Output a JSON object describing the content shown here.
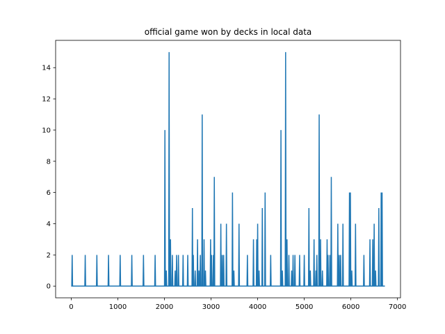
{
  "chart_data": {
    "type": "line",
    "title": "official game won by decks in local data",
    "xlabel": "",
    "ylabel": "",
    "xlim": [
      -335,
      7065
    ],
    "ylim": [
      -0.75,
      15.75
    ],
    "x_ticks": [
      0,
      1000,
      2000,
      3000,
      4000,
      5000,
      6000,
      7000
    ],
    "y_ticks": [
      0,
      2,
      4,
      6,
      8,
      10,
      12,
      14
    ],
    "x_tick_labels": [
      "0",
      "1000",
      "2000",
      "3000",
      "4000",
      "5000",
      "6000",
      "7000"
    ],
    "y_tick_labels": [
      "0",
      "2",
      "4",
      "6",
      "8",
      "10",
      "12",
      "14"
    ],
    "grid": false,
    "series_color": "#1f77b4",
    "x_range": [
      0,
      6730
    ],
    "baseline": 0,
    "spikes": [
      {
        "x": 20,
        "y": 2
      },
      {
        "x": 300,
        "y": 2
      },
      {
        "x": 550,
        "y": 2
      },
      {
        "x": 800,
        "y": 2
      },
      {
        "x": 1050,
        "y": 2
      },
      {
        "x": 1300,
        "y": 2
      },
      {
        "x": 1550,
        "y": 2
      },
      {
        "x": 1800,
        "y": 2
      },
      {
        "x": 2010,
        "y": 10
      },
      {
        "x": 2040,
        "y": 1
      },
      {
        "x": 2100,
        "y": 15
      },
      {
        "x": 2130,
        "y": 3
      },
      {
        "x": 2170,
        "y": 2
      },
      {
        "x": 2230,
        "y": 1
      },
      {
        "x": 2260,
        "y": 2
      },
      {
        "x": 2300,
        "y": 2
      },
      {
        "x": 2400,
        "y": 2
      },
      {
        "x": 2500,
        "y": 2
      },
      {
        "x": 2600,
        "y": 5
      },
      {
        "x": 2620,
        "y": 2
      },
      {
        "x": 2660,
        "y": 1
      },
      {
        "x": 2710,
        "y": 3
      },
      {
        "x": 2740,
        "y": 1
      },
      {
        "x": 2770,
        "y": 2
      },
      {
        "x": 2810,
        "y": 11
      },
      {
        "x": 2850,
        "y": 3
      },
      {
        "x": 2880,
        "y": 1
      },
      {
        "x": 2990,
        "y": 3
      },
      {
        "x": 3010,
        "y": 2
      },
      {
        "x": 3050,
        "y": 2
      },
      {
        "x": 3070,
        "y": 7
      },
      {
        "x": 3210,
        "y": 4
      },
      {
        "x": 3240,
        "y": 2
      },
      {
        "x": 3270,
        "y": 2
      },
      {
        "x": 3330,
        "y": 4
      },
      {
        "x": 3460,
        "y": 6
      },
      {
        "x": 3490,
        "y": 1
      },
      {
        "x": 3600,
        "y": 4
      },
      {
        "x": 3780,
        "y": 2
      },
      {
        "x": 3910,
        "y": 3
      },
      {
        "x": 3980,
        "y": 3
      },
      {
        "x": 4000,
        "y": 4
      },
      {
        "x": 4030,
        "y": 1
      },
      {
        "x": 4100,
        "y": 5
      },
      {
        "x": 4160,
        "y": 6
      },
      {
        "x": 4280,
        "y": 2
      },
      {
        "x": 4500,
        "y": 10
      },
      {
        "x": 4530,
        "y": 1
      },
      {
        "x": 4600,
        "y": 15
      },
      {
        "x": 4630,
        "y": 3
      },
      {
        "x": 4670,
        "y": 2
      },
      {
        "x": 4730,
        "y": 1
      },
      {
        "x": 4760,
        "y": 2
      },
      {
        "x": 4800,
        "y": 2
      },
      {
        "x": 4900,
        "y": 2
      },
      {
        "x": 5000,
        "y": 2
      },
      {
        "x": 5100,
        "y": 5
      },
      {
        "x": 5130,
        "y": 1
      },
      {
        "x": 5210,
        "y": 3
      },
      {
        "x": 5250,
        "y": 1
      },
      {
        "x": 5270,
        "y": 2
      },
      {
        "x": 5320,
        "y": 11
      },
      {
        "x": 5350,
        "y": 3
      },
      {
        "x": 5390,
        "y": 1
      },
      {
        "x": 5490,
        "y": 3
      },
      {
        "x": 5510,
        "y": 2
      },
      {
        "x": 5550,
        "y": 2
      },
      {
        "x": 5580,
        "y": 7
      },
      {
        "x": 5720,
        "y": 4
      },
      {
        "x": 5750,
        "y": 2
      },
      {
        "x": 5780,
        "y": 2
      },
      {
        "x": 5830,
        "y": 4
      },
      {
        "x": 5970,
        "y": 6
      },
      {
        "x": 5990,
        "y": 6
      },
      {
        "x": 6020,
        "y": 1
      },
      {
        "x": 6100,
        "y": 4
      },
      {
        "x": 6280,
        "y": 2
      },
      {
        "x": 6410,
        "y": 3
      },
      {
        "x": 6470,
        "y": 3
      },
      {
        "x": 6500,
        "y": 4
      },
      {
        "x": 6530,
        "y": 1
      },
      {
        "x": 6600,
        "y": 5
      },
      {
        "x": 6650,
        "y": 6
      },
      {
        "x": 6670,
        "y": 6
      }
    ]
  }
}
